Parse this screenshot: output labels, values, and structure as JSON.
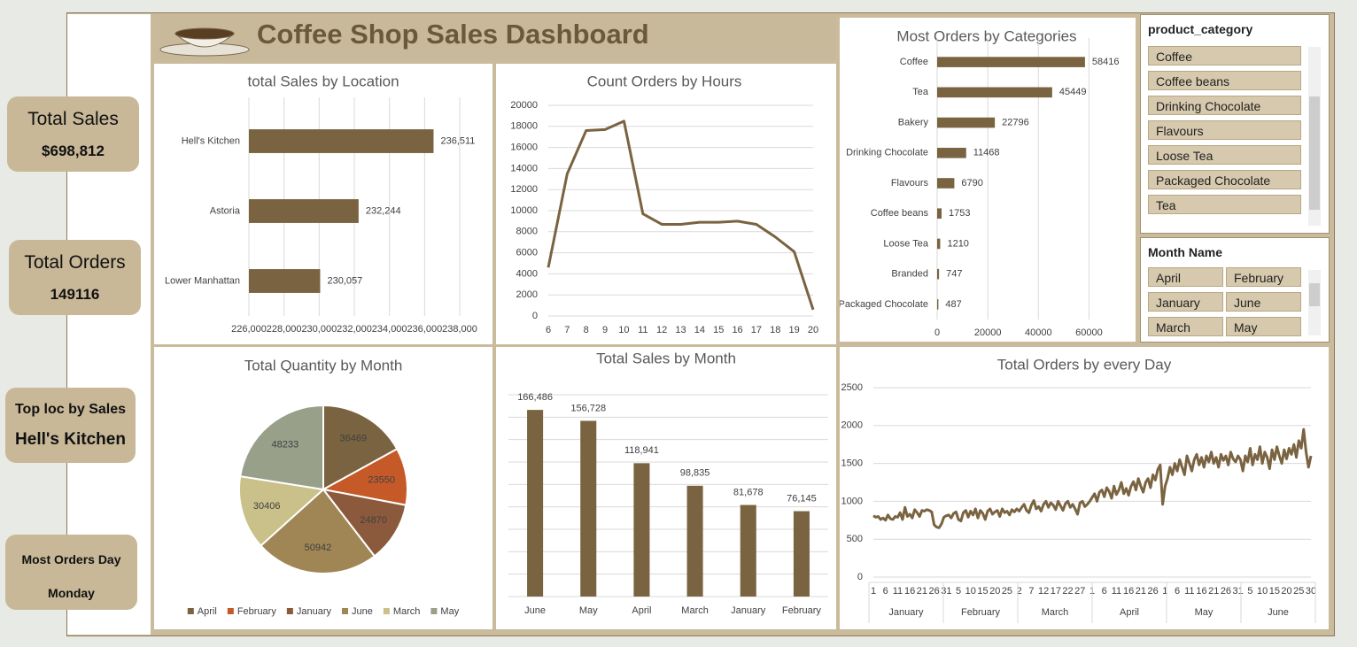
{
  "header": {
    "title": "Coffee Shop Sales Dashboard"
  },
  "kpis": [
    {
      "label": "Total Sales",
      "value": "$698,812"
    },
    {
      "label": "Total Orders",
      "value": 149116
    },
    {
      "label": "Top loc by Sales",
      "value": "Hell's Kitchen"
    },
    {
      "label": "Most Orders Day",
      "value": "Monday"
    }
  ],
  "slicers": [
    {
      "title": "product_category",
      "items": [
        "Coffee",
        "Coffee beans",
        "Drinking Chocolate",
        "Flavours",
        "Loose Tea",
        "Packaged Chocolate",
        "Tea"
      ]
    },
    {
      "title": "Month Name",
      "items": [
        "April",
        "February",
        "January",
        "June",
        "March",
        "May"
      ]
    }
  ],
  "chart_data": [
    {
      "type": "bar",
      "orientation": "horizontal",
      "title": "total Sales by Location",
      "categories": [
        "Hell's Kitchen",
        "Astoria",
        "Lower Manhattan"
      ],
      "values": [
        236511,
        232244,
        230057
      ],
      "value_labels": [
        "236,511",
        "232,244",
        "230,057"
      ],
      "color": "#7a6340",
      "xlim": [
        226000,
        238000
      ],
      "xticks": [
        {
          "value": 226000,
          "label": "226,000"
        },
        {
          "value": 228000,
          "label": "228,000"
        },
        {
          "value": 230000,
          "label": "230,000"
        },
        {
          "value": 232000,
          "label": "232,000"
        },
        {
          "value": 234000,
          "label": "234,000"
        },
        {
          "value": 236000,
          "label": "236,000"
        },
        {
          "value": 238000,
          "label": "238,000"
        }
      ],
      "grid": true
    },
    {
      "type": "line",
      "title": "Count Orders by Hours",
      "categories": [
        6,
        7,
        8,
        9,
        10,
        11,
        12,
        13,
        14,
        15,
        16,
        17,
        18,
        19,
        20
      ],
      "values": [
        4600,
        13500,
        17600,
        17700,
        18500,
        9700,
        8700,
        8700,
        8900,
        8900,
        9000,
        8700,
        7500,
        6100,
        600
      ],
      "color": "#7a6340",
      "ylim": [
        0,
        20000
      ],
      "yticks": [
        0,
        2000,
        4000,
        6000,
        8000,
        10000,
        12000,
        14000,
        16000,
        18000,
        20000
      ],
      "grid": true
    },
    {
      "type": "bar",
      "orientation": "horizontal",
      "title": "Most Orders by Categories",
      "categories": [
        "Coffee",
        "Tea",
        "Bakery",
        "Drinking Chocolate",
        "Flavours",
        "Coffee beans",
        "Loose Tea",
        "Branded",
        "Packaged Chocolate"
      ],
      "values": [
        58416,
        45449,
        22796,
        11468,
        6790,
        1753,
        1210,
        747,
        487
      ],
      "color": "#7a6340",
      "xlim": [
        0,
        70000
      ],
      "xticks": [
        0,
        20000,
        40000,
        60000
      ],
      "grid": true
    },
    {
      "type": "pie",
      "title": "Total Quantity by Month",
      "categories": [
        "April",
        "February",
        "January",
        "June",
        "March",
        "May"
      ],
      "values": [
        36469,
        23550,
        24870,
        50942,
        30406,
        48233
      ],
      "colors": [
        "#7a6340",
        "#c55a28",
        "#8b5a3c",
        "#a08654",
        "#c9c08a",
        "#98a08a"
      ],
      "legend": "bottom"
    },
    {
      "type": "bar",
      "orientation": "vertical",
      "title": "Total Sales by Month",
      "categories": [
        "June",
        "May",
        "April",
        "March",
        "January",
        "February"
      ],
      "values": [
        166486,
        156728,
        118941,
        98835,
        81678,
        76145
      ],
      "value_labels": [
        "166,486",
        "156,728",
        "118,941",
        "98,835",
        "81,678",
        "76,145"
      ],
      "color": "#7a6340",
      "ylim": [
        0,
        180000
      ],
      "yticks": [
        0,
        20000,
        40000,
        60000,
        80000,
        100000,
        120000,
        140000,
        160000,
        180000
      ],
      "grid": true,
      "show_ytick_labels": false
    },
    {
      "type": "line",
      "title": "Total Orders by every Day",
      "categories": [
        1,
        null,
        null,
        null,
        null,
        6,
        null,
        null,
        null,
        null,
        11,
        null,
        null,
        null,
        null,
        16,
        null,
        null,
        null,
        null,
        21,
        null,
        null,
        null,
        null,
        26,
        null,
        null,
        null,
        null,
        31,
        null,
        null,
        null,
        null,
        5,
        null,
        null,
        null,
        null,
        10,
        null,
        null,
        null,
        null,
        15,
        null,
        null,
        null,
        null,
        20,
        null,
        null,
        null,
        null,
        25,
        null,
        null,
        null,
        null,
        2,
        null,
        null,
        null,
        null,
        7,
        null,
        null,
        null,
        null,
        12,
        null,
        null,
        null,
        null,
        17,
        null,
        null,
        null,
        null,
        22,
        null,
        null,
        null,
        null,
        27,
        null,
        null,
        null,
        null,
        1,
        null,
        null,
        null,
        null,
        6,
        null,
        null,
        null,
        null,
        11,
        null,
        null,
        null,
        null,
        16,
        null,
        null,
        null,
        null,
        21,
        null,
        null,
        null,
        null,
        26,
        null,
        null,
        null,
        null,
        1,
        null,
        null,
        null,
        null,
        6,
        null,
        null,
        null,
        null,
        11,
        null,
        null,
        null,
        null,
        16,
        null,
        null,
        null,
        null,
        21,
        null,
        null,
        null,
        null,
        26,
        null,
        null,
        null,
        null,
        31,
        null,
        null,
        null,
        null,
        5,
        null,
        null,
        null,
        null,
        10,
        null,
        null,
        null,
        null,
        15,
        null,
        null,
        null,
        null,
        20,
        null,
        null,
        null,
        null,
        25,
        null,
        null,
        null,
        null,
        30
      ],
      "x_groups": [
        "January",
        "February",
        "March",
        "April",
        "May",
        "June"
      ],
      "values": [
        810,
        790,
        800,
        760,
        780,
        750,
        820,
        770,
        760,
        800,
        790,
        850,
        760,
        920,
        800,
        830,
        780,
        890,
        850,
        800,
        880,
        870,
        890,
        880,
        860,
        690,
        660,
        650,
        700,
        790,
        810,
        820,
        780,
        840,
        860,
        760,
        740,
        850,
        880,
        790,
        870,
        820,
        900,
        780,
        880,
        840,
        760,
        870,
        900,
        830,
        860,
        880,
        800,
        900,
        850,
        870,
        820,
        890,
        860,
        900,
        870,
        920,
        960,
        880,
        850,
        950,
        1010,
        900,
        930,
        870,
        960,
        1000,
        920,
        980,
        950,
        890,
        1000,
        940,
        880,
        970,
        1000,
        920,
        960,
        900,
        830,
        980,
        1000,
        930,
        960,
        1000,
        1050,
        1100,
        1000,
        1120,
        1150,
        1060,
        1180,
        1130,
        1040,
        1200,
        1090,
        1150,
        1250,
        1100,
        1170,
        1080,
        1200,
        1260,
        1150,
        1300,
        1200,
        1120,
        1250,
        1300,
        1180,
        1350,
        1280,
        1420,
        1480,
        960,
        1200,
        1300,
        1450,
        1350,
        1500,
        1400,
        1550,
        1450,
        1350,
        1600,
        1500,
        1400,
        1550,
        1620,
        1480,
        1580,
        1450,
        1600,
        1520,
        1650,
        1500,
        1580,
        1450,
        1620,
        1540,
        1600,
        1480,
        1650,
        1560,
        1520,
        1600,
        1550,
        1400,
        1600,
        1520,
        1700,
        1480,
        1620,
        1550,
        1720,
        1500,
        1650,
        1580,
        1430,
        1680,
        1550,
        1720,
        1600,
        1500,
        1680,
        1560,
        1700,
        1620,
        1750,
        1580,
        1800,
        1700,
        1950,
        1650,
        1450,
        1600
      ],
      "color": "#7a6340",
      "ylim": [
        0,
        2500
      ],
      "yticks": [
        0,
        500,
        1000,
        1500,
        2000,
        2500
      ],
      "grid": true
    }
  ]
}
